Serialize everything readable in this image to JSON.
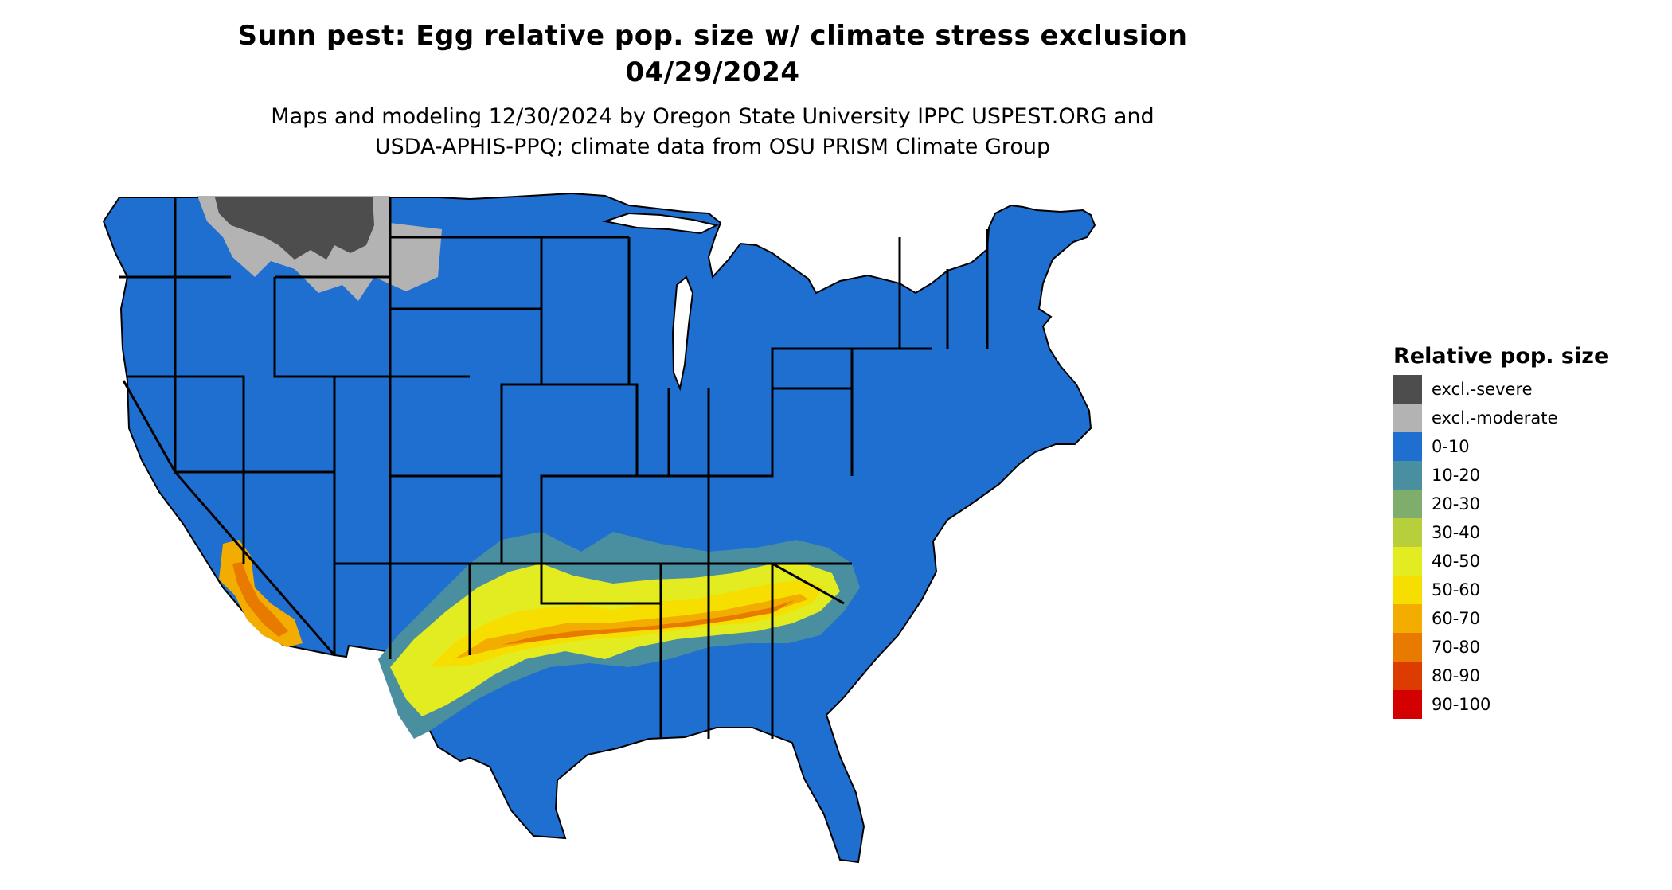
{
  "title": {
    "line1": "Sunn pest: Egg relative pop. size w/ climate stress exclusion",
    "line2": "04/29/2024"
  },
  "subtitle": {
    "line1": "Maps and modeling 12/30/2024 by Oregon State University IPPC USPEST.ORG and",
    "line2": "USDA-APHIS-PPQ; climate data from OSU PRISM Climate Group"
  },
  "legend": {
    "title": "Relative pop. size",
    "items": [
      {
        "label": "excl.-severe",
        "color": "#4d4d4d"
      },
      {
        "label": "excl.-moderate",
        "color": "#b3b3b3"
      },
      {
        "label": "0-10",
        "color": "#1f6fd1"
      },
      {
        "label": "10-20",
        "color": "#4a8fa0"
      },
      {
        "label": "20-30",
        "color": "#7fae6c"
      },
      {
        "label": "30-40",
        "color": "#b6cf3b"
      },
      {
        "label": "40-50",
        "color": "#e2ec20"
      },
      {
        "label": "50-60",
        "color": "#f6df00"
      },
      {
        "label": "60-70",
        "color": "#f2ad00"
      },
      {
        "label": "70-80",
        "color": "#e97a00"
      },
      {
        "label": "80-90",
        "color": "#dd3c00"
      },
      {
        "label": "90-100",
        "color": "#d40000"
      }
    ]
  },
  "colors": {
    "state_border": "#000000",
    "background": "#ffffff"
  }
}
